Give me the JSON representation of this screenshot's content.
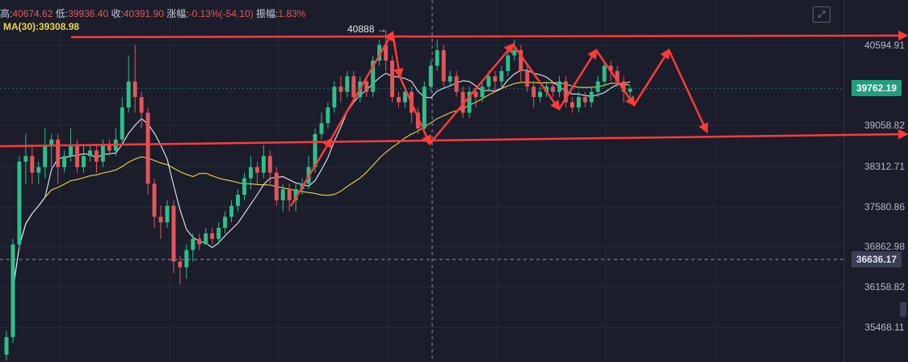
{
  "header": {
    "high_label": "高:",
    "high_value": "40674.62",
    "low_label": "低:",
    "low_value": "39936.40",
    "close_label": "收:",
    "close_value": "40391.90",
    "change_label": "涨幅:",
    "change_value": "-0.13%(-54.10)",
    "amplitude_label": "振幅:",
    "amplitude_value": "1.83%"
  },
  "ma": {
    "label": "MA(30):",
    "value": "39308.98"
  },
  "markers": {
    "peak_label": "40888 →",
    "current_price": "39762.19",
    "crosshair_price": "36636.17"
  },
  "icons": {
    "expand": "expand-icon"
  },
  "colors": {
    "background": "#1b1d2b",
    "up": "#2ec08b",
    "down": "#e4555b",
    "ma_fast": "#e8e8f0",
    "ma30": "#e6d84a",
    "annotation": "#ff3b3b",
    "current_tag": "#1f9f7d"
  },
  "chart_data": {
    "type": "candlestick",
    "y_ticks": [
      40594.91,
      39058.82,
      38312.71,
      37580.86,
      36862.98,
      36158.82,
      35468.11
    ],
    "y_tick_labels": [
      "40594.91",
      "39058.82",
      "38312.71",
      "37580.86",
      "36862.98",
      "36158.82",
      "35468.11"
    ],
    "ylim": [
      34900,
      41300
    ],
    "grid": true,
    "current_price": 39762.19,
    "crosshair_price": 36636.17,
    "peak": 40888,
    "candles": [
      [
        35000,
        35300,
        34900,
        35400
      ],
      [
        35300,
        36900,
        35200,
        37000
      ],
      [
        36900,
        38400,
        36800,
        38500
      ],
      [
        38400,
        38500,
        38000,
        38900
      ],
      [
        38500,
        38200,
        38000,
        38700
      ],
      [
        38200,
        38300,
        38000,
        38400
      ],
      [
        38300,
        38700,
        38100,
        39000
      ],
      [
        38700,
        38800,
        38300,
        38900
      ],
      [
        38800,
        38300,
        38000,
        38900
      ],
      [
        38300,
        38500,
        38200,
        38600
      ],
      [
        38500,
        38700,
        38400,
        39000
      ],
      [
        38700,
        38300,
        38200,
        38800
      ],
      [
        38300,
        38500,
        38200,
        38700
      ],
      [
        38500,
        38600,
        38400,
        38700
      ],
      [
        38600,
        38400,
        38200,
        38700
      ],
      [
        38400,
        38700,
        38300,
        38800
      ],
      [
        38700,
        38600,
        38500,
        38800
      ],
      [
        38600,
        38800,
        38500,
        39000
      ],
      [
        38800,
        39400,
        38700,
        39600
      ],
      [
        39400,
        39900,
        39300,
        40400
      ],
      [
        39900,
        39600,
        39300,
        40600
      ],
      [
        39600,
        39300,
        39000,
        39700
      ],
      [
        39300,
        38000,
        37800,
        39400
      ],
      [
        38000,
        37400,
        37200,
        38100
      ],
      [
        37400,
        37300,
        37000,
        37600
      ],
      [
        37300,
        37600,
        37200,
        37700
      ],
      [
        37600,
        36600,
        36400,
        37700
      ],
      [
        36600,
        36500,
        36200,
        36700
      ],
      [
        36500,
        36800,
        36300,
        36900
      ],
      [
        36800,
        37000,
        36600,
        37100
      ],
      [
        37000,
        36900,
        36800,
        37100
      ],
      [
        36900,
        37100,
        36900,
        37200
      ],
      [
        37100,
        37000,
        36900,
        37200
      ],
      [
        37000,
        37200,
        36900,
        37300
      ],
      [
        37200,
        37400,
        37100,
        37500
      ],
      [
        37400,
        37600,
        37300,
        37700
      ],
      [
        37600,
        37800,
        37500,
        37900
      ],
      [
        37800,
        38100,
        37700,
        38200
      ],
      [
        38100,
        38300,
        37900,
        38500
      ],
      [
        38300,
        38200,
        38000,
        38400
      ],
      [
        38200,
        38500,
        38100,
        38700
      ],
      [
        38500,
        38200,
        38000,
        38600
      ],
      [
        38200,
        37700,
        37600,
        38300
      ],
      [
        37700,
        37900,
        37500,
        38000
      ],
      [
        37900,
        37700,
        37500,
        38000
      ],
      [
        37700,
        37900,
        37500,
        38000
      ],
      [
        37900,
        38000,
        37800,
        38100
      ],
      [
        38000,
        38300,
        37900,
        38500
      ],
      [
        38300,
        38900,
        38200,
        39000
      ],
      [
        38900,
        39100,
        38800,
        39300
      ],
      [
        39100,
        39400,
        39000,
        39500
      ],
      [
        39400,
        39800,
        39300,
        39900
      ],
      [
        39800,
        39700,
        39500,
        40000
      ],
      [
        39700,
        40000,
        39600,
        40100
      ],
      [
        40000,
        39600,
        39500,
        40100
      ],
      [
        39600,
        39900,
        39500,
        40000
      ],
      [
        39900,
        39700,
        39600,
        40000
      ],
      [
        39700,
        40300,
        39600,
        40400
      ],
      [
        40300,
        40600,
        40200,
        40700
      ],
      [
        40600,
        40300,
        40100,
        40888
      ],
      [
        40300,
        39600,
        39500,
        40400
      ],
      [
        39600,
        39500,
        39400,
        39700
      ],
      [
        39500,
        39700,
        39400,
        39800
      ],
      [
        39700,
        39300,
        39100,
        39800
      ],
      [
        39300,
        39000,
        38900,
        39400
      ],
      [
        39000,
        39800,
        38900,
        39900
      ],
      [
        39800,
        40200,
        39700,
        40300
      ],
      [
        40200,
        40500,
        40100,
        40700
      ],
      [
        40500,
        39900,
        39800,
        40600
      ],
      [
        39900,
        40000,
        39800,
        40100
      ],
      [
        40000,
        39700,
        39600,
        40100
      ],
      [
        39700,
        39300,
        39200,
        39800
      ],
      [
        39300,
        39700,
        39200,
        39800
      ],
      [
        39700,
        39600,
        39400,
        39800
      ],
      [
        39600,
        39800,
        39500,
        39900
      ],
      [
        39800,
        40000,
        39700,
        40100
      ],
      [
        40000,
        39900,
        39700,
        40100
      ],
      [
        39900,
        40100,
        39800,
        40200
      ],
      [
        40100,
        40400,
        40000,
        40500
      ],
      [
        40400,
        40500,
        40300,
        40700
      ],
      [
        40500,
        40100,
        39900,
        40600
      ],
      [
        40100,
        39800,
        39700,
        40200
      ],
      [
        39800,
        39600,
        39400,
        39900
      ],
      [
        39600,
        39700,
        39500,
        39800
      ],
      [
        39700,
        39800,
        39600,
        39900
      ],
      [
        39800,
        39700,
        39600,
        39900
      ],
      [
        39700,
        39900,
        39600,
        40000
      ],
      [
        39900,
        39500,
        39400,
        40000
      ],
      [
        39500,
        39400,
        39300,
        39600
      ],
      [
        39400,
        39600,
        39300,
        39700
      ],
      [
        39600,
        39500,
        39400,
        39700
      ],
      [
        39500,
        39700,
        39400,
        39800
      ],
      [
        39700,
        39900,
        39600,
        40000
      ],
      [
        39900,
        40200,
        39800,
        40300
      ],
      [
        40200,
        40100,
        39900,
        40300
      ],
      [
        40100,
        39900,
        39800,
        40200
      ],
      [
        39900,
        39700,
        39500,
        40000
      ],
      [
        39700,
        39762,
        39600,
        39800
      ]
    ]
  }
}
